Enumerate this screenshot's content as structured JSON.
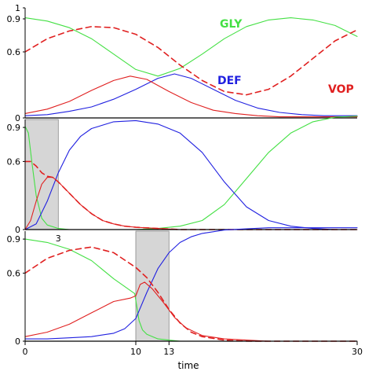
{
  "chart_data": {
    "type": "line",
    "xlabel": "time",
    "xlim": [
      0,
      30
    ],
    "x_ticks": [
      "0",
      "10",
      "13",
      "30"
    ],
    "ylim": [
      0,
      1
    ],
    "series_legend": [
      {
        "name": "GLY",
        "color": "#44e044"
      },
      {
        "name": "DEF",
        "color": "#2020e0"
      },
      {
        "name": "VOP",
        "color": "#e02020"
      }
    ],
    "panels": [
      {
        "y_ticks": [
          "1",
          "0.9",
          "0.6",
          "0"
        ],
        "shaded": null,
        "annotation": "",
        "series": [
          {
            "name": "GLY",
            "color": "#44e044",
            "dashed": false,
            "x": [
              0,
              2,
              4,
              6,
              8,
              10,
              12,
              14,
              16,
              18,
              20,
              22,
              24,
              26,
              28,
              30
            ],
            "y": [
              0.91,
              0.88,
              0.82,
              0.72,
              0.58,
              0.44,
              0.38,
              0.45,
              0.58,
              0.72,
              0.83,
              0.89,
              0.91,
              0.89,
              0.84,
              0.74
            ]
          },
          {
            "name": "DEF",
            "color": "#2020e0",
            "dashed": false,
            "x": [
              0,
              2,
              4,
              6,
              8,
              10,
              12,
              13.5,
              15,
              17,
              19,
              21,
              23,
              25,
              27,
              30
            ],
            "y": [
              0.02,
              0.03,
              0.06,
              0.1,
              0.17,
              0.26,
              0.36,
              0.4,
              0.36,
              0.26,
              0.16,
              0.09,
              0.05,
              0.03,
              0.02,
              0.02
            ]
          },
          {
            "name": "VOP",
            "color": "#e02020",
            "dashed": false,
            "x": [
              0,
              2,
              4,
              6,
              8,
              9.5,
              11,
              13,
              15,
              17,
              19,
              21,
              23,
              25,
              27,
              30
            ],
            "y": [
              0.04,
              0.08,
              0.15,
              0.25,
              0.34,
              0.38,
              0.35,
              0.24,
              0.14,
              0.07,
              0.04,
              0.02,
              0.01,
              0.01,
              0.01,
              0.01
            ]
          },
          {
            "name": "VOP total",
            "color": "#e02020",
            "dashed": true,
            "x": [
              0,
              2,
              4,
              6,
              8,
              10,
              12,
              14,
              16,
              18,
              20,
              22,
              24,
              26,
              28,
              30
            ],
            "y": [
              0.6,
              0.72,
              0.79,
              0.83,
              0.82,
              0.76,
              0.64,
              0.48,
              0.34,
              0.24,
              0.21,
              0.26,
              0.38,
              0.54,
              0.7,
              0.8
            ]
          }
        ]
      },
      {
        "y_ticks": [
          "0.9",
          "0.6",
          "0"
        ],
        "shaded": [
          0,
          3
        ],
        "annotation": "",
        "series": [
          {
            "name": "GLY",
            "color": "#44e044",
            "dashed": false,
            "x": [
              0,
              0.3,
              0.6,
              1,
              1.5,
              2,
              3,
              4,
              6,
              8,
              10,
              12,
              14,
              16,
              18,
              20,
              22,
              24,
              26,
              28,
              30
            ],
            "y": [
              0.91,
              0.85,
              0.6,
              0.3,
              0.1,
              0.04,
              0.01,
              0,
              0,
              0,
              0,
              0.01,
              0.03,
              0.08,
              0.22,
              0.45,
              0.68,
              0.85,
              0.95,
              0.99,
              1.0
            ]
          },
          {
            "name": "DEF",
            "color": "#2020e0",
            "dashed": false,
            "x": [
              0,
              1,
              2,
              3,
              4,
              5,
              6,
              8,
              10,
              12,
              14,
              16,
              18,
              20,
              22,
              24,
              26,
              28,
              30
            ],
            "y": [
              0.0,
              0.05,
              0.25,
              0.5,
              0.7,
              0.82,
              0.89,
              0.95,
              0.96,
              0.93,
              0.85,
              0.68,
              0.42,
              0.2,
              0.08,
              0.03,
              0.01,
              0.0,
              0.0
            ]
          },
          {
            "name": "VOP",
            "color": "#e02020",
            "dashed": false,
            "x": [
              0,
              0.5,
              1,
              1.5,
              2,
              2.5,
              3,
              4,
              5,
              6,
              7,
              8,
              9,
              10,
              12,
              14,
              16,
              30
            ],
            "y": [
              0.0,
              0.08,
              0.25,
              0.4,
              0.46,
              0.46,
              0.42,
              0.32,
              0.22,
              0.14,
              0.08,
              0.05,
              0.03,
              0.02,
              0.01,
              0,
              0,
              0
            ]
          },
          {
            "name": "VOP total",
            "color": "#e02020",
            "dashed": true,
            "x": [
              0,
              0.5,
              1,
              1.5,
              2,
              2.5,
              3,
              4,
              5,
              6,
              7,
              8,
              9,
              10,
              12,
              14,
              16,
              30
            ],
            "y": [
              0.6,
              0.6,
              0.56,
              0.5,
              0.47,
              0.46,
              0.42,
              0.32,
              0.22,
              0.14,
              0.08,
              0.05,
              0.03,
              0.02,
              0.01,
              0,
              0,
              0
            ]
          }
        ]
      },
      {
        "y_ticks": [
          "0.9",
          "0.6",
          "0"
        ],
        "shaded": [
          10,
          13
        ],
        "annotation": "3",
        "series": [
          {
            "name": "GLY",
            "color": "#44e044",
            "dashed": false,
            "x": [
              0,
              2,
              4,
              6,
              8,
              9.9,
              10.05,
              10.3,
              10.6,
              11,
              12,
              13,
              14,
              15,
              16,
              18,
              20,
              22,
              30
            ],
            "y": [
              0.9,
              0.87,
              0.81,
              0.71,
              0.55,
              0.42,
              0.33,
              0.18,
              0.1,
              0.06,
              0.02,
              0.01,
              0,
              0,
              0,
              0,
              0,
              0,
              0
            ]
          },
          {
            "name": "DEF",
            "color": "#2020e0",
            "dashed": false,
            "x": [
              0,
              2,
              4,
              6,
              8,
              9,
              10,
              11,
              12,
              13,
              14,
              15,
              16,
              18,
              20,
              22,
              24,
              30
            ],
            "y": [
              0.02,
              0.02,
              0.03,
              0.04,
              0.07,
              0.11,
              0.2,
              0.43,
              0.64,
              0.78,
              0.87,
              0.92,
              0.95,
              0.98,
              0.99,
              1.0,
              1.0,
              1.0
            ]
          },
          {
            "name": "VOP",
            "color": "#e02020",
            "dashed": false,
            "x": [
              0,
              2,
              4,
              6,
              8,
              9.5,
              10,
              10.4,
              10.8,
              11.5,
              12.5,
              13.5,
              14.5,
              16,
              18,
              20,
              22,
              30
            ],
            "y": [
              0.04,
              0.08,
              0.15,
              0.25,
              0.35,
              0.38,
              0.4,
              0.5,
              0.52,
              0.46,
              0.34,
              0.21,
              0.12,
              0.05,
              0.02,
              0.01,
              0,
              0
            ]
          },
          {
            "name": "VOP total",
            "color": "#e02020",
            "dashed": true,
            "x": [
              0,
              2,
              4,
              6,
              8,
              10,
              11,
              12,
              13,
              14,
              15,
              16,
              18,
              20,
              22,
              30
            ],
            "y": [
              0.6,
              0.73,
              0.8,
              0.83,
              0.78,
              0.65,
              0.56,
              0.43,
              0.28,
              0.16,
              0.08,
              0.04,
              0.01,
              0,
              0,
              0
            ]
          }
        ]
      }
    ]
  }
}
